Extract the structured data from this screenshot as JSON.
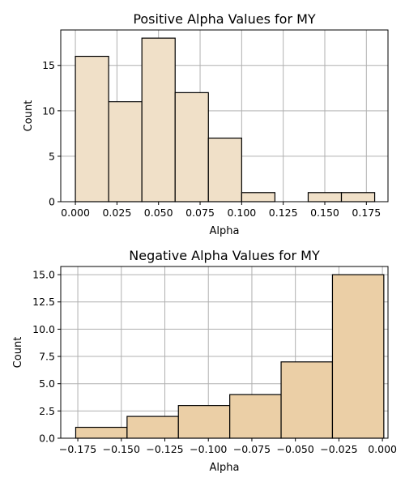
{
  "chart_data": [
    {
      "type": "bar",
      "title": "Positive Alpha Values for MY",
      "xlabel": "Alpha",
      "ylabel": "Count",
      "bar_color": "#f0e0c8",
      "edge_color": "#000000",
      "grid": true,
      "xlim": [
        -0.0088,
        0.188
      ],
      "ylim": [
        0,
        18.9
      ],
      "xticks": [
        0.0,
        0.025,
        0.05,
        0.075,
        0.1,
        0.125,
        0.15,
        0.175
      ],
      "xtick_labels": [
        "0.000",
        "0.025",
        "0.050",
        "0.075",
        "0.100",
        "0.125",
        "0.150",
        "0.175"
      ],
      "yticks": [
        0,
        5,
        10,
        15
      ],
      "ytick_labels": [
        "0",
        "5",
        "10",
        "15"
      ],
      "bins": [
        {
          "x0": 0.0,
          "x1": 0.02,
          "count": 16
        },
        {
          "x0": 0.02,
          "x1": 0.04,
          "count": 11
        },
        {
          "x0": 0.04,
          "x1": 0.06,
          "count": 18
        },
        {
          "x0": 0.06,
          "x1": 0.08,
          "count": 12
        },
        {
          "x0": 0.08,
          "x1": 0.1,
          "count": 7
        },
        {
          "x0": 0.1,
          "x1": 0.12,
          "count": 1
        },
        {
          "x0": 0.12,
          "x1": 0.14,
          "count": 0
        },
        {
          "x0": 0.14,
          "x1": 0.16,
          "count": 1
        },
        {
          "x0": 0.16,
          "x1": 0.18,
          "count": 1
        }
      ]
    },
    {
      "type": "bar",
      "title": "Negative Alpha Values for MY",
      "xlabel": "Alpha",
      "ylabel": "Count",
      "bar_color": "#ebcfa6",
      "edge_color": "#000000",
      "grid": true,
      "xlim": [
        -0.1848,
        0.0032
      ],
      "ylim": [
        0,
        15.75
      ],
      "xticks": [
        -0.175,
        -0.15,
        -0.125,
        -0.1,
        -0.075,
        -0.05,
        -0.025,
        0.0
      ],
      "xtick_labels": [
        "−0.175",
        "−0.150",
        "−0.125",
        "−0.100",
        "−0.075",
        "−0.050",
        "−0.025",
        "0.000"
      ],
      "yticks": [
        0,
        2.5,
        5,
        7.5,
        10,
        12.5,
        15
      ],
      "ytick_labels": [
        "0.0",
        "2.5",
        "5.0",
        "7.5",
        "10.0",
        "12.5",
        "15.0"
      ],
      "bins": [
        {
          "x0": -0.1762,
          "x1": -0.1467,
          "count": 1
        },
        {
          "x0": -0.1467,
          "x1": -0.1172,
          "count": 2
        },
        {
          "x0": -0.1172,
          "x1": -0.0877,
          "count": 3
        },
        {
          "x0": -0.0877,
          "x1": -0.0582,
          "count": 4
        },
        {
          "x0": -0.0582,
          "x1": -0.0287,
          "count": 7
        },
        {
          "x0": -0.0287,
          "x1": 0.0008,
          "count": 15
        }
      ]
    }
  ]
}
